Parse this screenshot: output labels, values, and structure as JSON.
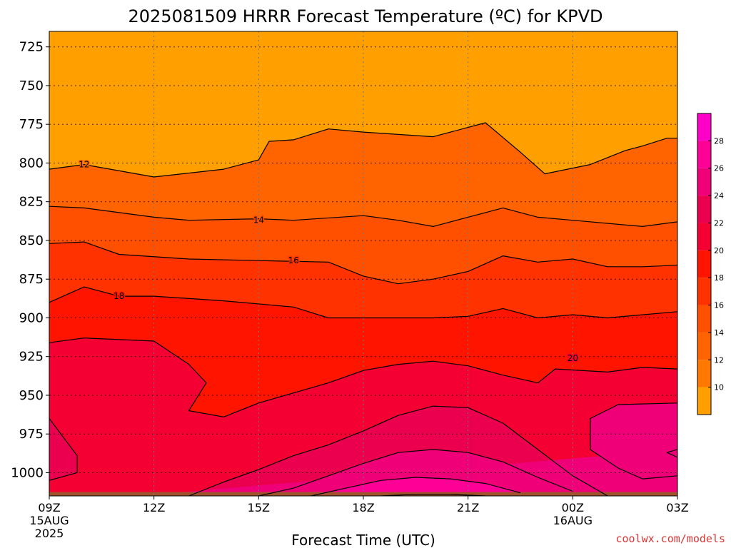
{
  "chart_data": {
    "type": "heatmap",
    "title": "2025081509 HRRR Forecast Temperature (ºC) for KPVD",
    "xlabel": "Forecast Time (UTC)",
    "ylabel": "",
    "credit": "coolwx.com/models",
    "x_ticks": [
      {
        "hour": 0,
        "label": "09Z",
        "sub1": "15AUG",
        "sub2": "2025"
      },
      {
        "hour": 3,
        "label": "12Z",
        "sub1": "",
        "sub2": ""
      },
      {
        "hour": 6,
        "label": "15Z",
        "sub1": "",
        "sub2": ""
      },
      {
        "hour": 9,
        "label": "18Z",
        "sub1": "",
        "sub2": ""
      },
      {
        "hour": 12,
        "label": "21Z",
        "sub1": "",
        "sub2": ""
      },
      {
        "hour": 15,
        "label": "00Z",
        "sub1": "16AUG",
        "sub2": ""
      },
      {
        "hour": 18,
        "label": "03Z",
        "sub1": "",
        "sub2": ""
      }
    ],
    "xlim": [
      0,
      18
    ],
    "y_axis": "pressure (hPa), inverted",
    "ylim": [
      1015,
      715
    ],
    "y_ticks": [
      725,
      750,
      775,
      800,
      825,
      850,
      875,
      900,
      925,
      950,
      975,
      1000
    ],
    "grid": true,
    "colorbar": {
      "placement": "right",
      "levels": [
        8,
        10,
        12,
        14,
        16,
        18,
        20,
        22,
        24,
        26,
        28,
        30
      ],
      "tick_labels": [
        10,
        12,
        14,
        16,
        18,
        20,
        22,
        24,
        26,
        28
      ],
      "colors": [
        "#FFA000",
        "#FF8C00",
        "#FF7800",
        "#FF6400",
        "#FF5000",
        "#FF3200",
        "#FF1400",
        "#F50032",
        "#EB0050",
        "#F00078",
        "#FF0096",
        "#FF00C8"
      ]
    },
    "surface_color": "#A0522D",
    "contours": [
      {
        "level": 12,
        "label": "12",
        "label_pos": [
          1.0,
          801
        ],
        "points": [
          [
            0,
            804
          ],
          [
            1,
            801
          ],
          [
            3,
            809
          ],
          [
            5,
            804
          ],
          [
            6,
            798
          ],
          [
            6.3,
            786
          ],
          [
            7,
            785
          ],
          [
            8,
            778
          ],
          [
            9,
            780
          ],
          [
            11,
            783
          ],
          [
            12.5,
            774
          ],
          [
            13.5,
            793
          ],
          [
            14.2,
            807
          ],
          [
            15.5,
            801
          ],
          [
            16.5,
            792
          ],
          [
            17,
            789
          ],
          [
            17.7,
            784
          ],
          [
            18,
            784
          ]
        ]
      },
      {
        "level": 14,
        "label": "14",
        "label_pos": [
          6.0,
          837
        ],
        "points": [
          [
            0,
            828
          ],
          [
            1,
            829
          ],
          [
            3,
            835
          ],
          [
            4,
            837
          ],
          [
            6,
            836
          ],
          [
            7,
            837
          ],
          [
            9,
            834
          ],
          [
            10,
            837
          ],
          [
            11,
            841
          ],
          [
            12.5,
            832
          ],
          [
            13,
            829
          ],
          [
            14,
            835
          ],
          [
            15,
            837
          ],
          [
            17,
            841
          ],
          [
            18,
            838
          ]
        ]
      },
      {
        "level": 16,
        "label": "16",
        "label_pos": [
          7.0,
          863
        ],
        "points": [
          [
            0,
            852
          ],
          [
            1,
            851
          ],
          [
            2,
            859
          ],
          [
            4,
            862
          ],
          [
            6,
            863
          ],
          [
            8,
            864
          ],
          [
            9,
            873
          ],
          [
            10,
            878
          ],
          [
            11,
            875
          ],
          [
            12,
            870
          ],
          [
            13,
            860
          ],
          [
            14,
            864
          ],
          [
            15,
            862
          ],
          [
            16,
            867
          ],
          [
            17,
            867
          ],
          [
            18,
            866
          ]
        ]
      },
      {
        "level": 18,
        "label": "18",
        "label_pos": [
          2.0,
          886
        ],
        "points": [
          [
            0,
            890
          ],
          [
            1,
            880
          ],
          [
            2,
            886
          ],
          [
            3,
            886
          ],
          [
            5,
            889
          ],
          [
            7,
            893
          ],
          [
            8,
            900
          ],
          [
            9,
            900
          ],
          [
            11,
            900
          ],
          [
            12,
            899
          ],
          [
            13,
            894
          ],
          [
            14,
            900
          ],
          [
            15,
            898
          ],
          [
            16,
            900
          ],
          [
            17,
            898
          ],
          [
            18,
            896
          ]
        ]
      },
      {
        "level": 20,
        "label": "20",
        "label_pos": [
          15.0,
          926
        ],
        "points": [
          [
            0,
            916
          ],
          [
            1,
            913
          ],
          [
            3,
            915
          ],
          [
            4,
            930
          ],
          [
            4.5,
            942
          ],
          [
            4,
            960
          ],
          [
            5,
            964
          ],
          [
            6,
            955
          ],
          [
            8,
            942
          ],
          [
            9,
            934
          ],
          [
            10,
            930
          ],
          [
            11,
            928
          ],
          [
            12,
            931
          ],
          [
            13,
            937
          ],
          [
            14,
            942
          ],
          [
            14.5,
            933
          ],
          [
            16,
            935
          ],
          [
            17,
            932
          ],
          [
            18,
            933
          ]
        ]
      },
      {
        "level": 22,
        "label": "",
        "label_pos": null,
        "points": [
          [
            0,
            965
          ],
          [
            0.8,
            989
          ],
          [
            0.8,
            1000
          ],
          [
            0,
            1005
          ]
        ]
      },
      {
        "level": 22,
        "label": "",
        "label_pos": null,
        "points": [
          [
            4,
            1015
          ],
          [
            5,
            1006
          ],
          [
            6,
            998
          ],
          [
            7,
            989
          ],
          [
            8,
            982
          ],
          [
            9,
            973
          ],
          [
            10,
            963
          ],
          [
            11,
            957
          ],
          [
            12,
            958
          ],
          [
            13,
            968
          ],
          [
            14,
            985
          ],
          [
            15,
            1002
          ],
          [
            16,
            1015
          ]
        ]
      },
      {
        "level": 24,
        "label": "",
        "label_pos": null,
        "points": [
          [
            6,
            1015
          ],
          [
            7,
            1010
          ],
          [
            8,
            1002
          ],
          [
            9,
            994
          ],
          [
            10,
            987
          ],
          [
            11,
            985
          ],
          [
            12,
            987
          ],
          [
            13,
            993
          ],
          [
            14,
            1003
          ],
          [
            15,
            1012
          ]
        ]
      },
      {
        "level": 24,
        "label": "",
        "label_pos": null,
        "points": [
          [
            18,
            955
          ],
          [
            16.3,
            956
          ],
          [
            15.5,
            965
          ],
          [
            15.5,
            985
          ],
          [
            16.3,
            997
          ],
          [
            17,
            1004
          ],
          [
            18,
            1002
          ]
        ]
      },
      {
        "level": 24,
        "label": "",
        "label_pos": null,
        "points": [
          [
            18,
            985
          ],
          [
            17.7,
            987
          ],
          [
            18,
            990
          ]
        ]
      },
      {
        "level": 26,
        "label": "",
        "label_pos": null,
        "points": [
          [
            7.5,
            1015
          ],
          [
            8.5,
            1010
          ],
          [
            9.5,
            1005
          ],
          [
            10.5,
            1003
          ],
          [
            11.5,
            1004
          ],
          [
            12.5,
            1007
          ],
          [
            13.5,
            1013
          ]
        ]
      },
      {
        "level": 28,
        "label": "",
        "label_pos": null,
        "points": [
          [
            9.5,
            1015
          ],
          [
            10.5,
            1014
          ],
          [
            11.5,
            1014
          ],
          [
            12.5,
            1015
          ]
        ]
      }
    ]
  }
}
